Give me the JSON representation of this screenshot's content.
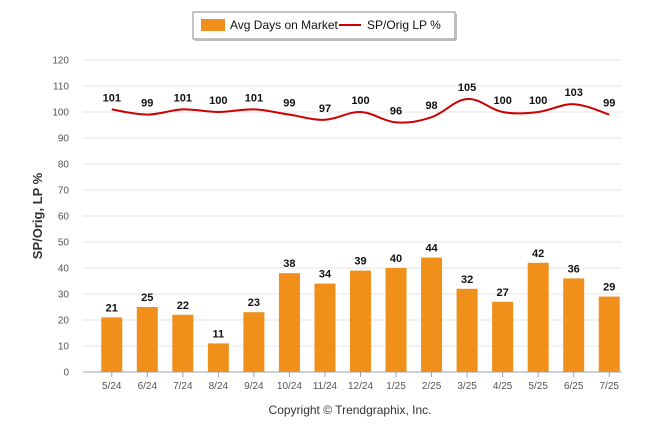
{
  "chart_data": {
    "type": "bar",
    "categories": [
      "5/24",
      "6/24",
      "7/24",
      "8/24",
      "9/24",
      "10/24",
      "11/24",
      "12/24",
      "1/25",
      "2/25",
      "3/25",
      "4/25",
      "5/25",
      "6/25",
      "7/25"
    ],
    "series": [
      {
        "name": "Avg Days on Market",
        "type": "bar",
        "color": "#f0901a",
        "values": [
          21,
          25,
          22,
          11,
          23,
          38,
          34,
          39,
          40,
          44,
          32,
          27,
          42,
          36,
          29
        ]
      },
      {
        "name": "SP/Orig LP %",
        "type": "line",
        "color": "#cc0000",
        "values": [
          101,
          99,
          101,
          100,
          101,
          99,
          97,
          100,
          96,
          98,
          105,
          100,
          100,
          103,
          99
        ]
      }
    ],
    "ylabel": "SP/Orig, LP %",
    "ylim": [
      0,
      120
    ],
    "yticks": [
      0,
      10,
      20,
      30,
      40,
      50,
      60,
      70,
      80,
      90,
      100,
      110,
      120
    ],
    "grid": true,
    "legend_position": "top-center",
    "footer": "Copyright © Trendgraphix, Inc."
  }
}
